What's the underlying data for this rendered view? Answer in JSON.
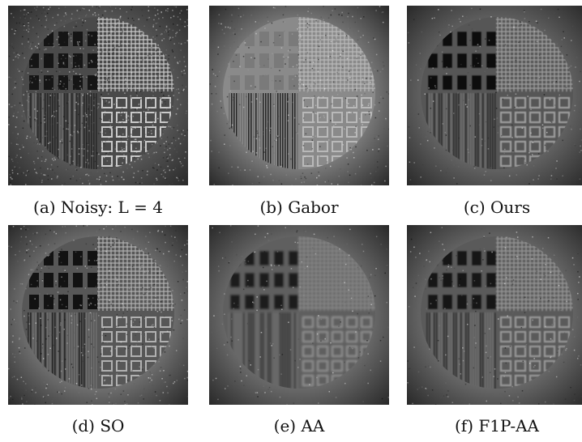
{
  "panels": [
    {
      "caption": "(a) Noisy: L = 4",
      "style": "noisy"
    },
    {
      "caption": "(b) Gabor",
      "style": "gabor"
    },
    {
      "caption": "(c) Ours",
      "style": "ours"
    },
    {
      "caption": "(d) SO",
      "style": "so"
    },
    {
      "caption": "(e) AA",
      "style": "aa"
    },
    {
      "caption": "(f) F1P-AA",
      "style": "f1paa"
    }
  ]
}
